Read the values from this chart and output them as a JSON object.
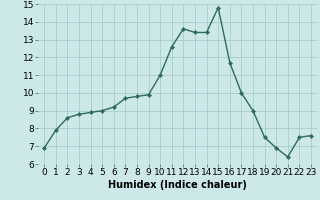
{
  "x": [
    0,
    1,
    2,
    3,
    4,
    5,
    6,
    7,
    8,
    9,
    10,
    11,
    12,
    13,
    14,
    15,
    16,
    17,
    18,
    19,
    20,
    21,
    22,
    23
  ],
  "y": [
    6.9,
    7.9,
    8.6,
    8.8,
    8.9,
    9.0,
    9.2,
    9.7,
    9.8,
    9.9,
    11.0,
    12.6,
    13.6,
    13.4,
    13.4,
    14.8,
    11.7,
    10.0,
    9.0,
    7.5,
    6.9,
    6.4,
    7.5,
    7.6
  ],
  "xlabel": "Humidex (Indice chaleur)",
  "ylim": [
    6,
    15
  ],
  "xlim": [
    -0.5,
    23.5
  ],
  "yticks": [
    6,
    7,
    8,
    9,
    10,
    11,
    12,
    13,
    14,
    15
  ],
  "xticks": [
    0,
    1,
    2,
    3,
    4,
    5,
    6,
    7,
    8,
    9,
    10,
    11,
    12,
    13,
    14,
    15,
    16,
    17,
    18,
    19,
    20,
    21,
    22,
    23
  ],
  "line_color": "#2e6b5e",
  "marker": "D",
  "marker_size": 2.0,
  "bg_color": "#cce8e8",
  "grid_color": "#aacccc",
  "xlabel_fontsize": 7,
  "tick_fontsize": 6.5,
  "line_width": 1.0
}
